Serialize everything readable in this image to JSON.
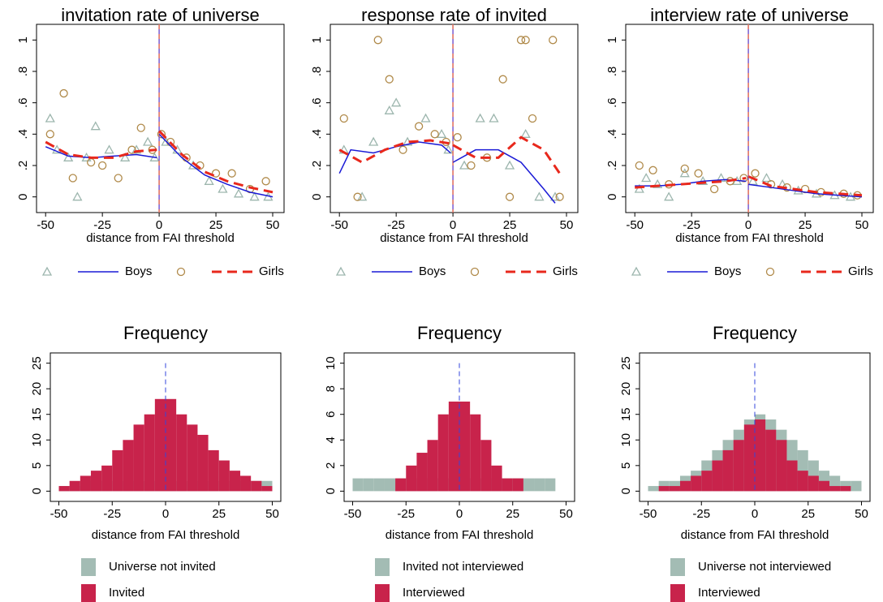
{
  "chart_data": [
    {
      "type": "scatter",
      "title": "invitation rate of universe",
      "xlabel": "distance from FAI threshold",
      "xlim": [
        -54,
        55
      ],
      "ylim": [
        -0.1,
        1.1
      ],
      "threshold": 0,
      "xticks": [
        -50,
        -25,
        0,
        25,
        50
      ],
      "yticks": [
        0,
        {
          "value": 0.2,
          "label": ".2"
        },
        {
          "value": 0.4,
          "label": ".4"
        },
        {
          "value": 0.6,
          "label": ".6"
        },
        {
          "value": 0.8,
          "label": ".8"
        },
        1
      ],
      "series": [
        {
          "name": "Boys",
          "marker": "triangle",
          "color": "#9db6ae",
          "line_color": "#1a1ad6",
          "dashed": false,
          "x": [
            -48,
            -45,
            -40,
            -36,
            -32,
            -28,
            -22,
            -15,
            -10,
            -5,
            -2,
            3,
            8,
            15,
            22,
            28,
            35,
            42,
            48
          ],
          "values": [
            0.5,
            0.3,
            0.25,
            0,
            0.25,
            0.45,
            0.3,
            0.25,
            0.3,
            0.35,
            0.25,
            0.35,
            0.3,
            0.2,
            0.1,
            0.05,
            0.02,
            0,
            0
          ],
          "fit_x": [
            -50,
            -40,
            -30,
            -20,
            -10,
            -1,
            null,
            0,
            10,
            20,
            30,
            40,
            50
          ],
          "fit_values": [
            0.32,
            0.26,
            0.25,
            0.26,
            0.27,
            0.25,
            null,
            0.4,
            0.25,
            0.14,
            0.08,
            0.03,
            0
          ]
        },
        {
          "name": "Girls",
          "marker": "circle",
          "color": "#b08a4a",
          "line_color": "#e8281c",
          "dashed": true,
          "x": [
            -48,
            -42,
            -38,
            -30,
            -25,
            -18,
            -12,
            -8,
            -3,
            1,
            5,
            12,
            18,
            25,
            32,
            40,
            47
          ],
          "values": [
            0.4,
            0.66,
            0.12,
            0.22,
            0.2,
            0.12,
            0.3,
            0.44,
            0.3,
            0.4,
            0.35,
            0.25,
            0.2,
            0.15,
            0.15,
            0.05,
            0.1
          ],
          "fit_x": [
            -50,
            -40,
            -30,
            -20,
            -10,
            -1,
            null,
            0,
            10,
            20,
            30,
            40,
            50
          ],
          "fit_values": [
            0.35,
            0.27,
            0.25,
            0.25,
            0.29,
            0.3,
            null,
            0.42,
            0.27,
            0.16,
            0.1,
            0.06,
            0.03
          ]
        }
      ]
    },
    {
      "type": "scatter",
      "title": "response rate of invited",
      "xlabel": "distance from FAI threshold",
      "xlim": [
        -54,
        55
      ],
      "ylim": [
        -0.1,
        1.1
      ],
      "threshold": 0,
      "xticks": [
        -50,
        -25,
        0,
        25,
        50
      ],
      "yticks": [
        0,
        {
          "value": 0.2,
          "label": ".2"
        },
        {
          "value": 0.4,
          "label": ".4"
        },
        {
          "value": 0.6,
          "label": ".6"
        },
        {
          "value": 0.8,
          "label": ".8"
        },
        1
      ],
      "series": [
        {
          "name": "Boys",
          "marker": "triangle",
          "color": "#9db6ae",
          "line_color": "#1a1ad6",
          "dashed": false,
          "x": [
            -48,
            -40,
            -35,
            -28,
            -25,
            -20,
            -12,
            -5,
            -2,
            5,
            12,
            18,
            25,
            32,
            38,
            45
          ],
          "values": [
            0.3,
            0,
            0.35,
            0.55,
            0.6,
            0.35,
            0.5,
            0.4,
            0.3,
            0.2,
            0.5,
            0.5,
            0.2,
            0.4,
            0,
            0
          ],
          "fit_x": [
            -50,
            -45,
            -35,
            -25,
            -15,
            -5,
            -1,
            null,
            0,
            10,
            20,
            30,
            40,
            45
          ],
          "fit_values": [
            0.15,
            0.3,
            0.28,
            0.32,
            0.35,
            0.33,
            0.28,
            null,
            0.22,
            0.3,
            0.3,
            0.22,
            0.05,
            -0.04
          ]
        },
        {
          "name": "Girls",
          "marker": "circle",
          "color": "#b08a4a",
          "line_color": "#e8281c",
          "dashed": true,
          "x": [
            -48,
            -42,
            -33,
            -28,
            -22,
            -15,
            -8,
            -3,
            2,
            8,
            15,
            22,
            25,
            30,
            32,
            35,
            44,
            47
          ],
          "values": [
            0.5,
            0,
            1,
            0.75,
            0.3,
            0.45,
            0.4,
            0.35,
            0.38,
            0.2,
            0.25,
            0.75,
            0,
            1,
            1,
            0.5,
            1,
            0
          ],
          "fit_x": [
            -50,
            -40,
            -30,
            -20,
            -10,
            -1,
            null,
            0,
            10,
            20,
            30,
            40,
            47
          ],
          "fit_values": [
            0.3,
            0.22,
            0.3,
            0.35,
            0.36,
            0.34,
            null,
            0.33,
            0.25,
            0.25,
            0.38,
            0.3,
            0.15
          ]
        }
      ]
    },
    {
      "type": "scatter",
      "title": "interview rate of universe",
      "xlabel": "distance from FAI threshold",
      "xlim": [
        -54,
        55
      ],
      "ylim": [
        -0.1,
        1.1
      ],
      "threshold": 0,
      "xticks": [
        -50,
        -25,
        0,
        25,
        50
      ],
      "yticks": [
        0,
        {
          "value": 0.2,
          "label": ".2"
        },
        {
          "value": 0.4,
          "label": ".4"
        },
        {
          "value": 0.6,
          "label": ".6"
        },
        {
          "value": 0.8,
          "label": ".8"
        },
        1
      ],
      "series": [
        {
          "name": "Boys",
          "marker": "triangle",
          "color": "#9db6ae",
          "line_color": "#1a1ad6",
          "dashed": false,
          "x": [
            -48,
            -45,
            -40,
            -35,
            -28,
            -20,
            -12,
            -5,
            2,
            8,
            15,
            22,
            30,
            38,
            45
          ],
          "values": [
            0.05,
            0.12,
            0.08,
            0,
            0.15,
            0.1,
            0.12,
            0.1,
            0.1,
            0.12,
            0.08,
            0.04,
            0.02,
            0.01,
            0
          ],
          "fit_x": [
            -50,
            -40,
            -30,
            -20,
            -10,
            -1,
            null,
            0,
            10,
            20,
            30,
            40,
            50
          ],
          "fit_values": [
            0.07,
            0.07,
            0.08,
            0.1,
            0.11,
            0.1,
            null,
            0.08,
            0.06,
            0.04,
            0.02,
            0.01,
            0
          ]
        },
        {
          "name": "Girls",
          "marker": "circle",
          "color": "#b08a4a",
          "line_color": "#e8281c",
          "dashed": true,
          "x": [
            -48,
            -42,
            -35,
            -28,
            -22,
            -15,
            -8,
            -2,
            3,
            10,
            17,
            25,
            32,
            42,
            48
          ],
          "values": [
            0.2,
            0.17,
            0.08,
            0.18,
            0.15,
            0.05,
            0.1,
            0.12,
            0.15,
            0.08,
            0.06,
            0.05,
            0.03,
            0.02,
            0.01
          ],
          "fit_x": [
            -50,
            -40,
            -30,
            -20,
            -10,
            -1,
            null,
            0,
            10,
            20,
            30,
            40,
            50
          ],
          "fit_values": [
            0.06,
            0.07,
            0.08,
            0.09,
            0.1,
            0.12,
            null,
            0.13,
            0.07,
            0.05,
            0.03,
            0.02,
            0.01
          ]
        }
      ]
    },
    {
      "type": "histogram",
      "title": "Frequency",
      "xlabel": "distance from FAI threshold",
      "xlim": [
        -54,
        54
      ],
      "ylim": [
        -2,
        27
      ],
      "threshold": 0,
      "xticks": [
        -50,
        -25,
        0,
        25,
        50
      ],
      "yticks": [
        0,
        5,
        10,
        15,
        20,
        25
      ],
      "bins": [
        -50,
        -45,
        -40,
        -35,
        -30,
        -25,
        -20,
        -15,
        -10,
        -5,
        0,
        5,
        10,
        15,
        20,
        25,
        30,
        35,
        40,
        45,
        50
      ],
      "series": [
        {
          "name": "Universe not invited",
          "color": "#a3bcb4",
          "values": [
            1,
            1,
            2,
            2,
            2,
            2,
            2,
            2,
            2,
            2,
            2,
            2,
            2,
            2,
            2,
            2,
            2,
            2,
            2,
            2
          ]
        },
        {
          "name": "Invited",
          "color": "#c8234b",
          "values": [
            1,
            2,
            3,
            4,
            5,
            8,
            10,
            13,
            15,
            18,
            18,
            15,
            13,
            11,
            8,
            6,
            4,
            3,
            2,
            1
          ]
        }
      ]
    },
    {
      "type": "histogram",
      "title": "Frequency",
      "xlabel": "distance from FAI threshold",
      "xlim": [
        -54,
        54
      ],
      "ylim": [
        -0.8,
        10.8
      ],
      "threshold": 0,
      "xticks": [
        -50,
        -25,
        0,
        25,
        50
      ],
      "yticks": [
        0,
        2,
        4,
        6,
        8,
        10
      ],
      "bins": [
        -50,
        -45,
        -40,
        -35,
        -30,
        -25,
        -20,
        -15,
        -10,
        -5,
        0,
        5,
        10,
        15,
        20,
        25,
        30,
        35,
        40,
        45,
        50
      ],
      "series": [
        {
          "name": "Invited not interviewed",
          "color": "#a3bcb4",
          "values": [
            1,
            1,
            1,
            1,
            1,
            1,
            1,
            1,
            1,
            1,
            1,
            1,
            1,
            1,
            1,
            1,
            1,
            1,
            1,
            0
          ]
        },
        {
          "name": "Interviewed",
          "color": "#c8234b",
          "values": [
            0,
            0,
            0,
            0,
            1,
            2,
            3,
            4,
            6,
            7,
            7,
            6,
            4,
            2,
            1,
            1,
            0,
            0,
            0,
            0
          ]
        }
      ]
    },
    {
      "type": "histogram",
      "title": "Frequency",
      "xlabel": "distance from FAI threshold",
      "xlim": [
        -54,
        54
      ],
      "ylim": [
        -2,
        27
      ],
      "threshold": 0,
      "xticks": [
        -50,
        -25,
        0,
        25,
        50
      ],
      "yticks": [
        0,
        5,
        10,
        15,
        20,
        25
      ],
      "bins": [
        -50,
        -45,
        -40,
        -35,
        -30,
        -25,
        -20,
        -15,
        -10,
        -5,
        0,
        5,
        10,
        15,
        20,
        25,
        30,
        35,
        40,
        45,
        50
      ],
      "series": [
        {
          "name": "Universe not interviewed",
          "color": "#a3bcb4",
          "values": [
            1,
            2,
            2,
            3,
            4,
            6,
            8,
            10,
            12,
            14,
            15,
            14,
            12,
            10,
            8,
            6,
            4,
            3,
            2,
            2
          ]
        },
        {
          "name": "Interviewed",
          "color": "#c8234b",
          "values": [
            0,
            1,
            1,
            2,
            3,
            4,
            6,
            8,
            10,
            13,
            14,
            12,
            10,
            6,
            4,
            3,
            2,
            1,
            1,
            0
          ]
        }
      ]
    }
  ]
}
